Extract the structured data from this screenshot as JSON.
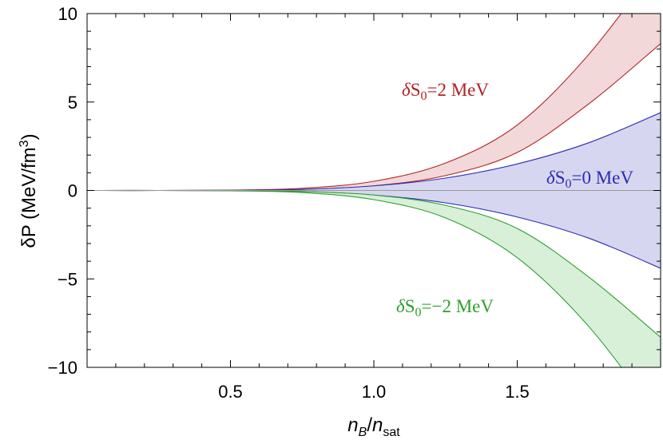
{
  "chart_data": {
    "type": "area",
    "title": "",
    "xlabel": {
      "main": "n",
      "main_sub": "B",
      "slash": "/",
      "denom": "n",
      "denom_sub": "sat"
    },
    "ylabel": {
      "text": "δP (MeV/fm",
      "sup": "3",
      "close": ")"
    },
    "xlim": [
      0,
      2
    ],
    "ylim": [
      -10,
      10
    ],
    "x_ticks": [
      0.5,
      1.0,
      1.5
    ],
    "x_tick_labels": [
      "0.5",
      "1.0",
      "1.5"
    ],
    "y_ticks": [
      -10,
      -5,
      0,
      5,
      10
    ],
    "y_tick_labels": [
      "−10",
      "−5",
      "0",
      "5",
      "10"
    ],
    "grid": false,
    "legend": "none",
    "x": [
      0,
      0.25,
      0.5,
      0.75,
      1.0,
      1.25,
      1.5,
      1.75,
      2.0
    ],
    "series": [
      {
        "color": "#b22222",
        "fill": "#f2d8d8",
        "lower": [
          0,
          0.0,
          0.01,
          0.06,
          0.26,
          0.84,
          2.15,
          4.9,
          8.3
        ],
        "upper": [
          0,
          0.0,
          0.02,
          0.12,
          0.52,
          1.55,
          3.7,
          7.7,
          13.0
        ],
        "label": {
          "delta": "δ",
          "name": "S",
          "sub": "0",
          "rest": "=2 MeV"
        }
      },
      {
        "color": "#2b2bb5",
        "fill": "#d6d6f0",
        "lower": [
          0,
          0.0,
          -0.01,
          -0.06,
          -0.26,
          -0.7,
          -1.5,
          -2.7,
          -4.4
        ],
        "upper": [
          0,
          0.0,
          0.01,
          0.06,
          0.26,
          0.7,
          1.5,
          2.7,
          4.4
        ],
        "label": {
          "delta": "δ",
          "name": "S",
          "sub": "0",
          "rest": "=0 MeV"
        }
      },
      {
        "color": "#2ca02c",
        "fill": "#d8efd8",
        "lower": [
          0,
          0.0,
          -0.02,
          -0.12,
          -0.52,
          -1.55,
          -3.8,
          -7.7,
          -13.0
        ],
        "upper": [
          0,
          0.0,
          -0.01,
          -0.06,
          -0.26,
          -0.84,
          -2.15,
          -4.9,
          -8.3
        ],
        "label": {
          "delta": "δ",
          "name": "S",
          "sub": "0",
          "rest": "=−2 MeV"
        }
      }
    ]
  }
}
